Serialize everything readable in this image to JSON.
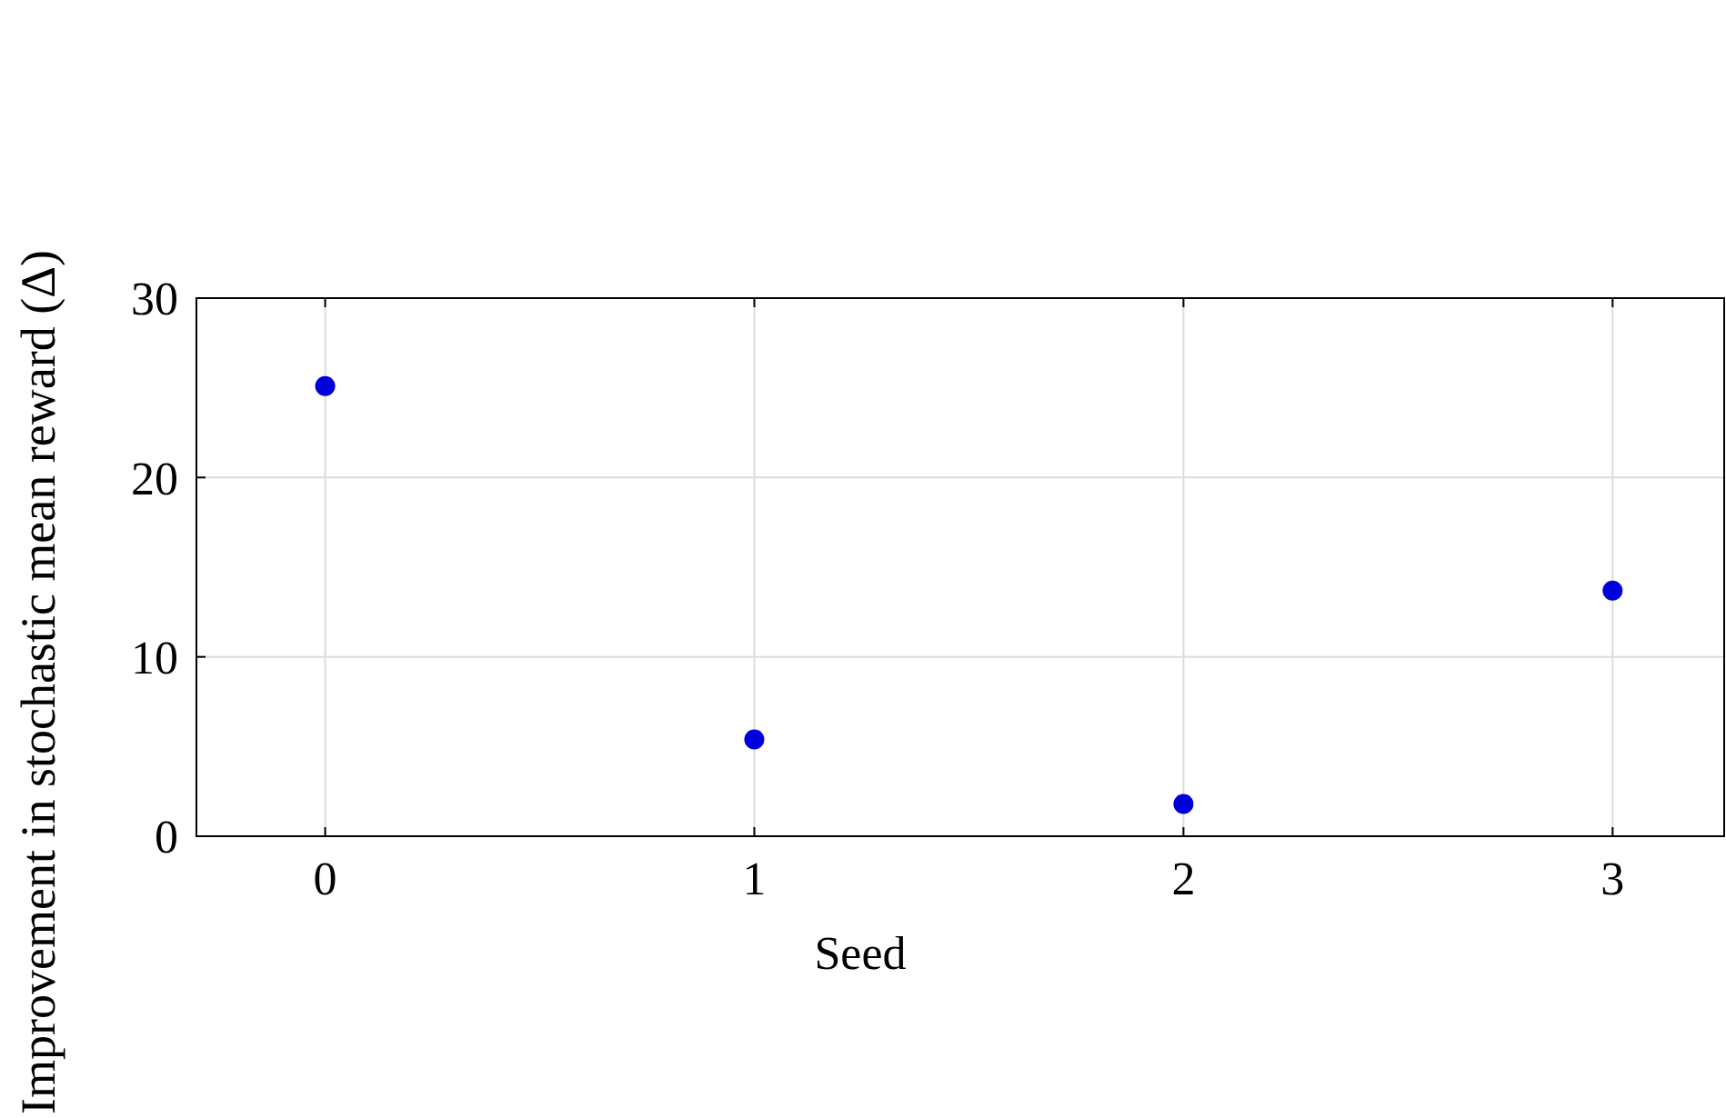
{
  "chart_data": {
    "type": "scatter",
    "xlabel": "Seed",
    "ylabel": "Improvement in stochastic mean reward (Δ)",
    "x": [
      0,
      1,
      2,
      3
    ],
    "values": [
      25.1,
      5.4,
      1.8,
      13.7
    ],
    "color": "#0000dd",
    "xlim": [
      -0.3,
      3.26
    ],
    "xticks": [
      0,
      1,
      2,
      3
    ],
    "ylim": [
      0,
      30
    ],
    "yticks": [
      0,
      10,
      20,
      30
    ],
    "grid": true,
    "marker": "circle"
  }
}
